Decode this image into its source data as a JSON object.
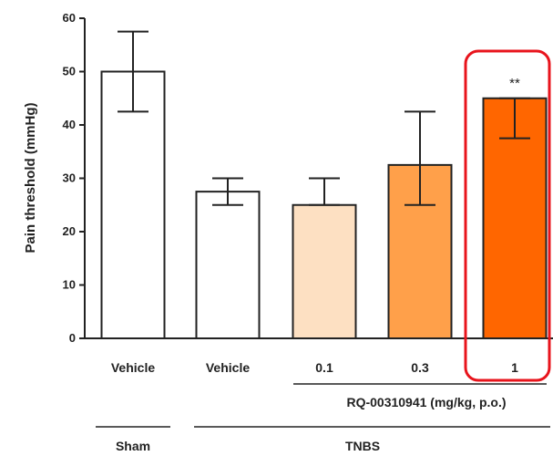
{
  "chart_data": {
    "type": "bar",
    "ylabel": "Pain threshold (mmHg)",
    "ylim": [
      0,
      60
    ],
    "yticks": [
      "0",
      "10",
      "20",
      "30",
      "40",
      "50",
      "60"
    ],
    "grid": false,
    "categories": [
      "Vehicle",
      "Vehicle",
      "0.1",
      "0.3",
      "1"
    ],
    "values": [
      50,
      27.5,
      25,
      32.5,
      45
    ],
    "err_high": [
      57.5,
      30,
      30,
      42.5,
      45
    ],
    "err_low": [
      42.5,
      25,
      25,
      25,
      37.5
    ],
    "colors": [
      "#ffffff",
      "#ffffff",
      "#fde0c2",
      "#ffa04a",
      "#ff6600"
    ],
    "annotations": [
      {
        "category_index": 4,
        "text": "**",
        "highlighted": true,
        "highlight_color": "#e8141c"
      }
    ],
    "dose_group": {
      "label": "RQ-00310941 (mg/kg, p.o.)",
      "category_indices": [
        2,
        3,
        4
      ]
    },
    "groups": [
      {
        "label": "Sham",
        "category_indices": [
          0
        ]
      },
      {
        "label": "TNBS",
        "category_indices": [
          1,
          2,
          3,
          4
        ]
      }
    ]
  }
}
